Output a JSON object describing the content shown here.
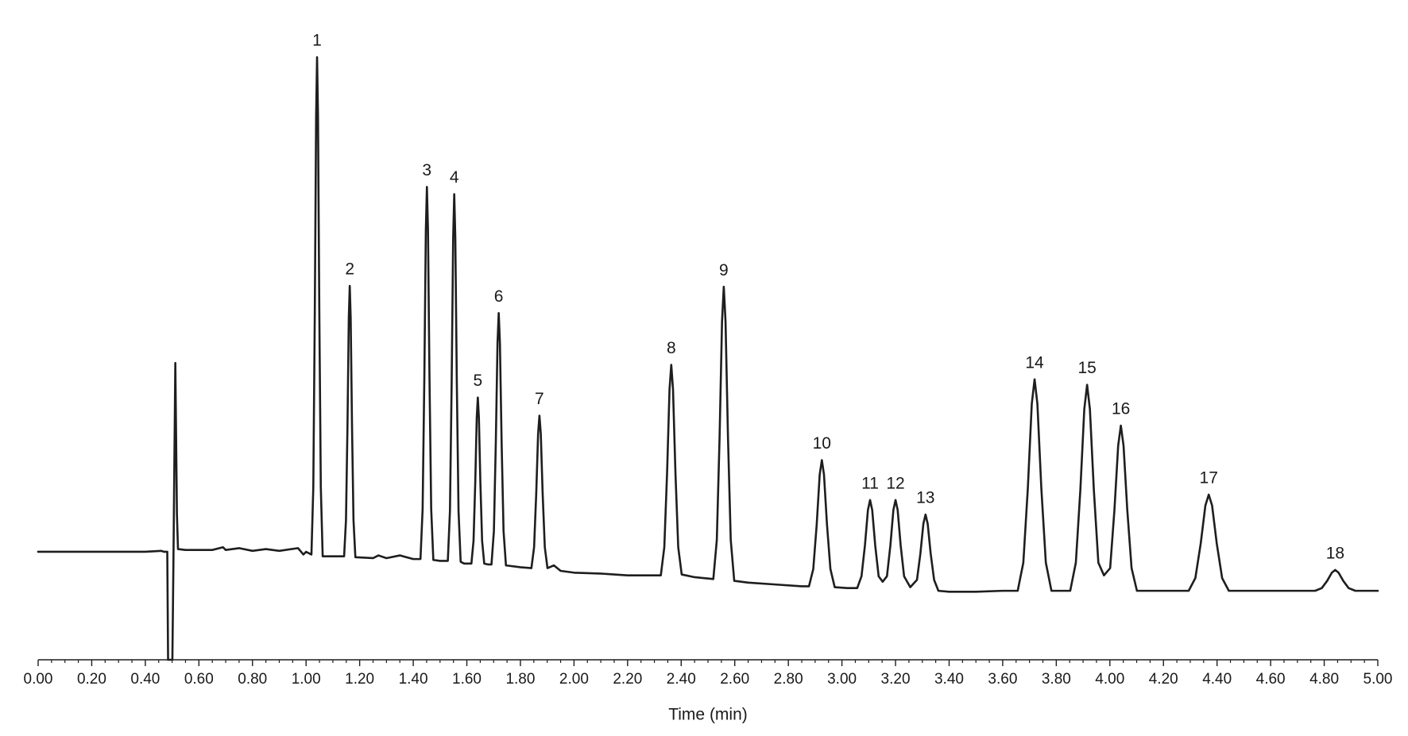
{
  "chart_data": {
    "type": "line",
    "x_label": "Time (min)",
    "color": "#1e1e1e",
    "xlim": [
      0,
      5
    ],
    "ylim": [
      0,
      727
    ],
    "xticks": [
      {
        "value": 0,
        "label": "0.00"
      },
      {
        "value": 0.2,
        "label": "0.20"
      },
      {
        "value": 0.4,
        "label": "0.40"
      },
      {
        "value": 0.6,
        "label": "0.60"
      },
      {
        "value": 0.8,
        "label": "0.80"
      },
      {
        "value": 1,
        "label": "1.00"
      },
      {
        "value": 1.2,
        "label": "1.20"
      },
      {
        "value": 1.4,
        "label": "1.40"
      },
      {
        "value": 1.6,
        "label": "1.60"
      },
      {
        "value": 1.8,
        "label": "1.80"
      },
      {
        "value": 2,
        "label": "2.00"
      },
      {
        "value": 2.2,
        "label": "2.20"
      },
      {
        "value": 2.4,
        "label": "2.40"
      },
      {
        "value": 2.6,
        "label": "2.60"
      },
      {
        "value": 2.8,
        "label": "2.80"
      },
      {
        "value": 3,
        "label": "3.00"
      },
      {
        "value": 3.2,
        "label": "3.20"
      },
      {
        "value": 3.4,
        "label": "3.40"
      },
      {
        "value": 3.6,
        "label": "3.60"
      },
      {
        "value": 3.8,
        "label": "3.80"
      },
      {
        "value": 4,
        "label": "4.00"
      },
      {
        "value": 4.2,
        "label": "4.20"
      },
      {
        "value": 4.4,
        "label": "4.40"
      },
      {
        "value": 4.6,
        "label": "4.60"
      },
      {
        "value": 4.8,
        "label": "4.80"
      },
      {
        "value": 5,
        "label": "5.00"
      }
    ],
    "xminorticks": [
      0.05,
      0.1,
      0.15,
      0.25,
      0.3,
      0.35,
      0.45,
      0.5,
      0.55,
      0.65,
      0.7,
      0.75,
      0.85,
      0.9,
      0.95,
      1.05,
      1.1,
      1.15,
      1.25,
      1.3,
      1.35,
      1.45,
      1.5,
      1.55,
      1.65,
      1.7,
      1.75,
      1.85,
      1.9,
      1.95,
      2.05,
      2.1,
      2.15,
      2.25,
      2.3,
      2.35,
      2.45,
      2.5,
      2.55,
      2.65,
      2.7,
      2.75,
      2.85,
      2.9,
      2.95,
      3.05,
      3.1,
      3.15,
      3.25,
      3.3,
      3.35,
      3.45,
      3.5,
      3.55,
      3.65,
      3.7,
      3.75,
      3.85,
      3.9,
      3.95,
      4.05,
      4.1,
      4.15,
      4.25,
      4.3,
      4.35,
      4.45,
      4.5,
      4.55,
      4.65,
      4.7,
      4.75,
      4.85,
      4.9,
      4.95
    ],
    "x": [
      0,
      0.1,
      0.2,
      0.3,
      0.4,
      0.46,
      0.47,
      0.482,
      0.485,
      0.501,
      0.505,
      0.512,
      0.518,
      0.522,
      0.55,
      0.6,
      0.65,
      0.69,
      0.7,
      0.75,
      0.8,
      0.85,
      0.9,
      0.97,
      0.99,
      1.0,
      1.02,
      1.027,
      1.0326,
      1.0375,
      1.041,
      1.0445,
      1.0494,
      1.055,
      1.062,
      1.142,
      1.149,
      1.1546,
      1.1595,
      1.163,
      1.1665,
      1.1714,
      1.177,
      1.184,
      1.25,
      1.27,
      1.3,
      1.35,
      1.4,
      1.427,
      1.435,
      1.4414,
      1.447,
      1.451,
      1.455,
      1.4606,
      1.467,
      1.475,
      1.5,
      1.529,
      1.537,
      1.5434,
      1.549,
      1.553,
      1.557,
      1.5626,
      1.569,
      1.577,
      1.59,
      1.617,
      1.625,
      1.6314,
      1.637,
      1.641,
      1.645,
      1.6506,
      1.657,
      1.665,
      1.68,
      1.692,
      1.701,
      1.7082,
      1.7145,
      1.719,
      1.7235,
      1.7298,
      1.737,
      1.746,
      1.8,
      1.841,
      1.851,
      1.859,
      1.866,
      1.871,
      1.876,
      1.883,
      1.891,
      1.901,
      1.925,
      1.95,
      2.0,
      2.1,
      2.2,
      2.25,
      2.324,
      2.337,
      2.3474,
      2.3565,
      2.363,
      2.3695,
      2.3786,
      2.389,
      2.402,
      2.45,
      2.52,
      2.533,
      2.5434,
      2.5525,
      2.559,
      2.5655,
      2.5746,
      2.585,
      2.598,
      2.65,
      2.75,
      2.85,
      2.877,
      2.893,
      2.9058,
      2.917,
      2.925,
      2.933,
      2.9442,
      2.957,
      2.973,
      3.02,
      3.057,
      3.073,
      3.0858,
      3.097,
      3.105,
      3.113,
      3.1242,
      3.137,
      3.152,
      3.168,
      3.1808,
      3.192,
      3.2,
      3.208,
      3.2192,
      3.232,
      3.255,
      3.28,
      3.2928,
      3.304,
      3.312,
      3.32,
      3.3312,
      3.344,
      3.36,
      3.4,
      3.5,
      3.6,
      3.64,
      3.656,
      3.677,
      3.6938,
      3.7085,
      3.719,
      3.7295,
      3.7442,
      3.761,
      3.782,
      3.82,
      3.852,
      3.873,
      3.8898,
      3.9045,
      3.915,
      3.9255,
      3.9402,
      3.957,
      3.978,
      4.001,
      4.017,
      4.031,
      4.041,
      4.051,
      4.065,
      4.081,
      4.101,
      4.2,
      4.26,
      4.294,
      4.319,
      4.339,
      4.3565,
      4.369,
      4.3815,
      4.399,
      4.419,
      4.444,
      4.5,
      4.6,
      4.75,
      4.766,
      4.791,
      4.811,
      4.8285,
      4.841,
      4.8535,
      4.871,
      4.891,
      4.916,
      5.0
    ],
    "values": [
      119,
      119,
      119,
      119,
      119,
      120,
      119,
      119,
      0,
      0,
      110,
      327,
      160,
      122,
      121,
      121,
      121,
      124,
      121,
      123,
      120,
      122,
      120,
      123,
      116,
      119,
      116,
      190,
      383,
      599,
      664,
      599,
      383,
      190,
      114,
      114,
      154,
      259,
      377,
      412,
      377,
      259,
      154,
      113,
      112,
      115,
      112,
      115,
      111,
      111,
      166,
      311,
      473,
      521,
      473,
      311,
      166,
      110,
      109,
      109,
      164,
      306,
      465,
      513,
      465,
      306,
      164,
      108,
      106,
      106,
      131,
      195,
      267,
      289,
      267,
      195,
      131,
      106,
      105,
      105,
      142,
      240,
      349,
      382,
      349,
      240,
      142,
      104,
      102,
      101,
      124,
      183,
      249,
      269,
      249,
      183,
      124,
      101,
      104,
      98,
      96,
      95,
      93,
      93,
      93,
      124,
      206,
      298,
      325,
      298,
      206,
      124,
      94,
      91,
      89,
      132,
      246,
      373,
      411,
      373,
      246,
      132,
      87,
      85,
      83,
      81,
      81,
      100,
      149,
      204,
      220,
      204,
      149,
      100,
      80,
      79,
      79,
      92,
      126,
      165,
      176,
      165,
      126,
      92,
      86,
      92,
      126,
      165,
      176,
      165,
      126,
      92,
      80,
      88,
      117,
      150,
      160,
      150,
      117,
      88,
      76,
      75,
      75,
      76,
      76,
      76,
      107,
      189,
      282,
      309,
      282,
      189,
      107,
      76,
      76,
      76,
      107,
      187,
      276,
      303,
      276,
      187,
      107,
      93,
      101,
      165,
      236,
      258,
      236,
      165,
      101,
      76,
      76,
      76,
      76,
      90,
      128,
      170,
      182,
      170,
      128,
      90,
      76,
      76,
      76,
      76,
      76,
      79,
      87,
      96,
      99,
      96,
      87,
      79,
      76,
      76
    ],
    "annotations": [
      {
        "text": "1",
        "x": 1.041,
        "y": 664
      },
      {
        "text": "2",
        "x": 1.163,
        "y": 412
      },
      {
        "text": "3",
        "x": 1.451,
        "y": 521
      },
      {
        "text": "4",
        "x": 1.553,
        "y": 513
      },
      {
        "text": "5",
        "x": 1.641,
        "y": 289
      },
      {
        "text": "6",
        "x": 1.719,
        "y": 382
      },
      {
        "text": "7",
        "x": 1.871,
        "y": 269
      },
      {
        "text": "8",
        "x": 2.363,
        "y": 325
      },
      {
        "text": "9",
        "x": 2.559,
        "y": 411
      },
      {
        "text": "10",
        "x": 2.925,
        "y": 220
      },
      {
        "text": "11",
        "x": 3.105,
        "y": 176
      },
      {
        "text": "12",
        "x": 3.2,
        "y": 176
      },
      {
        "text": "13",
        "x": 3.312,
        "y": 160
      },
      {
        "text": "14",
        "x": 3.719,
        "y": 309
      },
      {
        "text": "15",
        "x": 3.915,
        "y": 303
      },
      {
        "text": "16",
        "x": 4.041,
        "y": 258
      },
      {
        "text": "17",
        "x": 4.369,
        "y": 182
      },
      {
        "text": "18",
        "x": 4.841,
        "y": 99
      }
    ]
  }
}
